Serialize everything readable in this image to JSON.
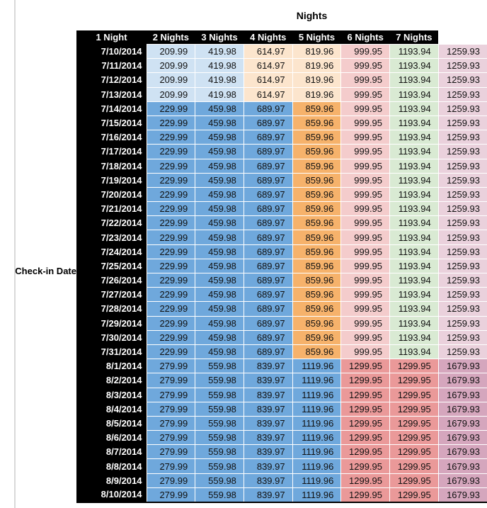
{
  "page": {
    "background": "#ffffff",
    "margin_rule_color": "#d9d9d9"
  },
  "chart_data": {
    "type": "table",
    "title": "Nights",
    "row_axis_label": "Check-in Date",
    "columns": [
      "1 Night",
      "2 Nights",
      "3 Nights",
      "4 Nights",
      "5 Nights",
      "6 Nights",
      "7 Nights"
    ],
    "header_bg": "#000000",
    "header_text_color": "#ffffff",
    "value_text_color": "#111111",
    "gridline_color": "#ffffff",
    "group_colors": {
      "A": [
        "#cfe2f3",
        "#cfe2f3",
        "#fce5cd",
        "#fce5cd",
        "#f4cccc",
        "#d9ead3",
        "#ead1dc"
      ],
      "B": [
        "#6fa8dc",
        "#6fa8dc",
        "#6fa8dc",
        "#f6b26b",
        "#f4cccc",
        "#d9ead3",
        "#ead1dc"
      ],
      "C": [
        "#6fa8dc",
        "#6fa8dc",
        "#6fa8dc",
        "#6fa8dc",
        "#ea9999",
        "#ea9999",
        "#d5a6bd"
      ]
    },
    "rows": [
      {
        "date": "7/10/2014",
        "group": "A",
        "values": [
          "209.99",
          "419.98",
          "614.97",
          "819.96",
          "999.95",
          "1193.94",
          "1259.93"
        ]
      },
      {
        "date": "7/11/2014",
        "group": "A",
        "values": [
          "209.99",
          "419.98",
          "614.97",
          "819.96",
          "999.95",
          "1193.94",
          "1259.93"
        ]
      },
      {
        "date": "7/12/2014",
        "group": "A",
        "values": [
          "209.99",
          "419.98",
          "614.97",
          "819.96",
          "999.95",
          "1193.94",
          "1259.93"
        ]
      },
      {
        "date": "7/13/2014",
        "group": "A",
        "values": [
          "209.99",
          "419.98",
          "614.97",
          "819.96",
          "999.95",
          "1193.94",
          "1259.93"
        ]
      },
      {
        "date": "7/14/2014",
        "group": "B",
        "values": [
          "229.99",
          "459.98",
          "689.97",
          "859.96",
          "999.95",
          "1193.94",
          "1259.93"
        ]
      },
      {
        "date": "7/15/2014",
        "group": "B",
        "values": [
          "229.99",
          "459.98",
          "689.97",
          "859.96",
          "999.95",
          "1193.94",
          "1259.93"
        ]
      },
      {
        "date": "7/16/2014",
        "group": "B",
        "values": [
          "229.99",
          "459.98",
          "689.97",
          "859.96",
          "999.95",
          "1193.94",
          "1259.93"
        ]
      },
      {
        "date": "7/17/2014",
        "group": "B",
        "values": [
          "229.99",
          "459.98",
          "689.97",
          "859.96",
          "999.95",
          "1193.94",
          "1259.93"
        ]
      },
      {
        "date": "7/18/2014",
        "group": "B",
        "values": [
          "229.99",
          "459.98",
          "689.97",
          "859.96",
          "999.95",
          "1193.94",
          "1259.93"
        ]
      },
      {
        "date": "7/19/2014",
        "group": "B",
        "values": [
          "229.99",
          "459.98",
          "689.97",
          "859.96",
          "999.95",
          "1193.94",
          "1259.93"
        ]
      },
      {
        "date": "7/20/2014",
        "group": "B",
        "values": [
          "229.99",
          "459.98",
          "689.97",
          "859.96",
          "999.95",
          "1193.94",
          "1259.93"
        ]
      },
      {
        "date": "7/21/2014",
        "group": "B",
        "values": [
          "229.99",
          "459.98",
          "689.97",
          "859.96",
          "999.95",
          "1193.94",
          "1259.93"
        ]
      },
      {
        "date": "7/22/2014",
        "group": "B",
        "values": [
          "229.99",
          "459.98",
          "689.97",
          "859.96",
          "999.95",
          "1193.94",
          "1259.93"
        ]
      },
      {
        "date": "7/23/2014",
        "group": "B",
        "values": [
          "229.99",
          "459.98",
          "689.97",
          "859.96",
          "999.95",
          "1193.94",
          "1259.93"
        ]
      },
      {
        "date": "7/24/2014",
        "group": "B",
        "values": [
          "229.99",
          "459.98",
          "689.97",
          "859.96",
          "999.95",
          "1193.94",
          "1259.93"
        ]
      },
      {
        "date": "7/25/2014",
        "group": "B",
        "values": [
          "229.99",
          "459.98",
          "689.97",
          "859.96",
          "999.95",
          "1193.94",
          "1259.93"
        ]
      },
      {
        "date": "7/26/2014",
        "group": "B",
        "values": [
          "229.99",
          "459.98",
          "689.97",
          "859.96",
          "999.95",
          "1193.94",
          "1259.93"
        ]
      },
      {
        "date": "7/27/2014",
        "group": "B",
        "values": [
          "229.99",
          "459.98",
          "689.97",
          "859.96",
          "999.95",
          "1193.94",
          "1259.93"
        ]
      },
      {
        "date": "7/28/2014",
        "group": "B",
        "values": [
          "229.99",
          "459.98",
          "689.97",
          "859.96",
          "999.95",
          "1193.94",
          "1259.93"
        ]
      },
      {
        "date": "7/29/2014",
        "group": "B",
        "values": [
          "229.99",
          "459.98",
          "689.97",
          "859.96",
          "999.95",
          "1193.94",
          "1259.93"
        ]
      },
      {
        "date": "7/30/2014",
        "group": "B",
        "values": [
          "229.99",
          "459.98",
          "689.97",
          "859.96",
          "999.95",
          "1193.94",
          "1259.93"
        ]
      },
      {
        "date": "7/31/2014",
        "group": "B",
        "values": [
          "229.99",
          "459.98",
          "689.97",
          "859.96",
          "999.95",
          "1193.94",
          "1259.93"
        ]
      },
      {
        "date": "8/1/2014",
        "group": "C",
        "values": [
          "279.99",
          "559.98",
          "839.97",
          "1119.96",
          "1299.95",
          "1299.95",
          "1679.93"
        ]
      },
      {
        "date": "8/2/2014",
        "group": "C",
        "values": [
          "279.99",
          "559.98",
          "839.97",
          "1119.96",
          "1299.95",
          "1299.95",
          "1679.93"
        ]
      },
      {
        "date": "8/3/2014",
        "group": "C",
        "values": [
          "279.99",
          "559.98",
          "839.97",
          "1119.96",
          "1299.95",
          "1299.95",
          "1679.93"
        ]
      },
      {
        "date": "8/4/2014",
        "group": "C",
        "values": [
          "279.99",
          "559.98",
          "839.97",
          "1119.96",
          "1299.95",
          "1299.95",
          "1679.93"
        ]
      },
      {
        "date": "8/5/2014",
        "group": "C",
        "values": [
          "279.99",
          "559.98",
          "839.97",
          "1119.96",
          "1299.95",
          "1299.95",
          "1679.93"
        ]
      },
      {
        "date": "8/6/2014",
        "group": "C",
        "values": [
          "279.99",
          "559.98",
          "839.97",
          "1119.96",
          "1299.95",
          "1299.95",
          "1679.93"
        ]
      },
      {
        "date": "8/7/2014",
        "group": "C",
        "values": [
          "279.99",
          "559.98",
          "839.97",
          "1119.96",
          "1299.95",
          "1299.95",
          "1679.93"
        ]
      },
      {
        "date": "8/8/2014",
        "group": "C",
        "values": [
          "279.99",
          "559.98",
          "839.97",
          "1119.96",
          "1299.95",
          "1299.95",
          "1679.93"
        ]
      },
      {
        "date": "8/9/2014",
        "group": "C",
        "values": [
          "279.99",
          "559.98",
          "839.97",
          "1119.96",
          "1299.95",
          "1299.95",
          "1679.93"
        ]
      },
      {
        "date": "8/10/2014",
        "group": "C",
        "values": [
          "279.99",
          "559.98",
          "839.97",
          "1119.96",
          "1299.95",
          "1299.95",
          "1679.93"
        ]
      }
    ]
  }
}
